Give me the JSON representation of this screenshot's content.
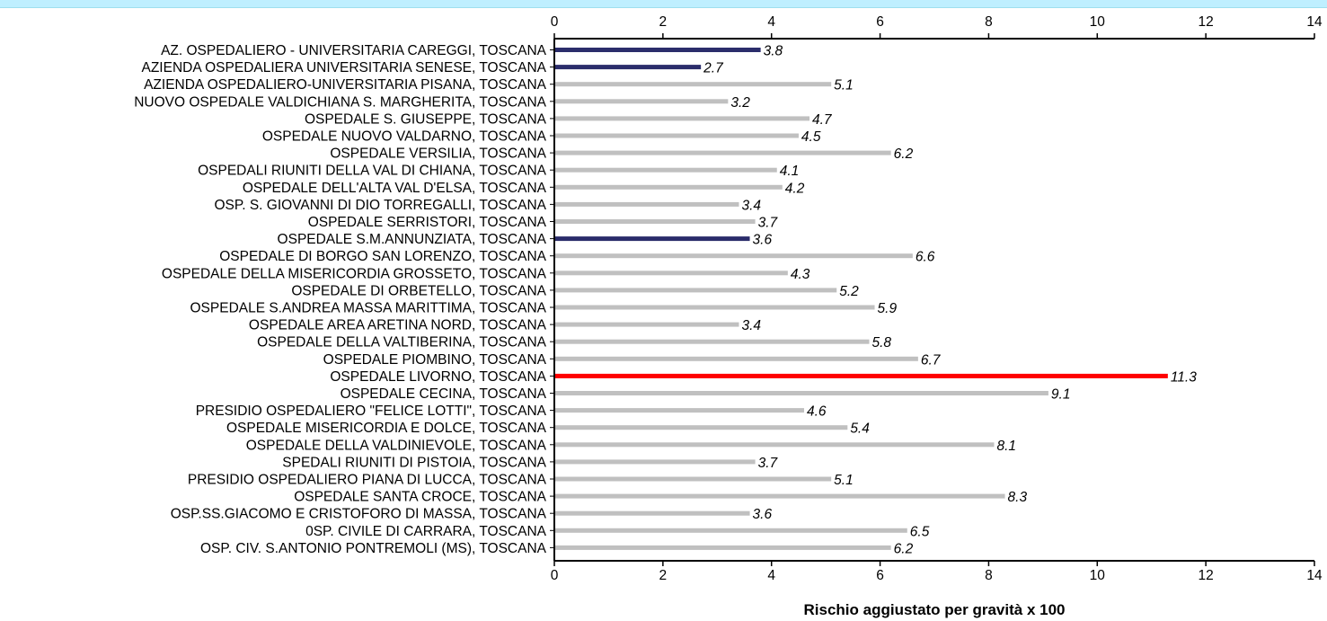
{
  "chart_data": {
    "type": "bar",
    "orientation": "horizontal",
    "title": "",
    "xlabel": "Rischio aggiustato per gravità x 100",
    "ylabel": "",
    "xlim": [
      0,
      14
    ],
    "xticks": [
      "0",
      "2",
      "4",
      "6",
      "8",
      "10",
      "12",
      "14"
    ],
    "grid": false,
    "colors": {
      "default": "#c0c0c0",
      "highlight_blue": "#2b2d6b",
      "highlight_red": "#ff0000"
    },
    "categories": [
      "AZ. OSPEDALIERO - UNIVERSITARIA CAREGGI, TOSCANA",
      "AZIENDA OSPEDALIERA UNIVERSITARIA SENESE, TOSCANA",
      "AZIENDA OSPEDALIERO-UNIVERSITARIA PISANA, TOSCANA",
      "NUOVO OSPEDALE VALDICHIANA S. MARGHERITA, TOSCANA",
      "OSPEDALE S. GIUSEPPE, TOSCANA",
      "OSPEDALE NUOVO VALDARNO, TOSCANA",
      "OSPEDALE VERSILIA, TOSCANA",
      "OSPEDALI RIUNITI DELLA VAL DI CHIANA, TOSCANA",
      "OSPEDALE DELL'ALTA VAL D'ELSA, TOSCANA",
      "OSP. S. GIOVANNI DI DIO TORREGALLI, TOSCANA",
      "OSPEDALE SERRISTORI, TOSCANA",
      "OSPEDALE S.M.ANNUNZIATA, TOSCANA",
      "OSPEDALE DI BORGO SAN LORENZO, TOSCANA",
      "OSPEDALE DELLA MISERICORDIA GROSSETO, TOSCANA",
      "OSPEDALE DI ORBETELLO, TOSCANA",
      "OSPEDALE  S.ANDREA   MASSA MARITTIMA, TOSCANA",
      "OSPEDALE AREA ARETINA NORD, TOSCANA",
      "OSPEDALE DELLA VALTIBERINA, TOSCANA",
      "OSPEDALE PIOMBINO, TOSCANA",
      "OSPEDALE LIVORNO, TOSCANA",
      "OSPEDALE CECINA, TOSCANA",
      "PRESIDIO OSPEDALIERO \"FELICE LOTTI\", TOSCANA",
      "OSPEDALE MISERICORDIA E DOLCE, TOSCANA",
      "OSPEDALE DELLA VALDINIEVOLE, TOSCANA",
      "SPEDALI RIUNITI DI PISTOIA, TOSCANA",
      "PRESIDIO OSPEDALIERO PIANA DI LUCCA, TOSCANA",
      "OSPEDALE SANTA CROCE, TOSCANA",
      "OSP.SS.GIACOMO E CRISTOFORO DI MASSA, TOSCANA",
      "0SP. CIVILE DI CARRARA, TOSCANA",
      "OSP. CIV. S.ANTONIO  PONTREMOLI (MS), TOSCANA"
    ],
    "values": [
      3.8,
      2.7,
      5.1,
      3.2,
      4.7,
      4.5,
      6.2,
      4.1,
      4.2,
      3.4,
      3.7,
      3.6,
      6.6,
      4.3,
      5.2,
      5.9,
      3.4,
      5.8,
      6.7,
      11.3,
      9.1,
      4.6,
      5.4,
      8.1,
      3.7,
      5.1,
      8.3,
      3.6,
      6.5,
      6.2
    ],
    "value_labels": [
      "3.8",
      "2.7",
      "5.1",
      "3.2",
      "4.7",
      "4.5",
      "6.2",
      "4.1",
      "4.2",
      "3.4",
      "3.7",
      "3.6",
      "6.6",
      "4.3",
      "5.2",
      "5.9",
      "3.4",
      "5.8",
      "6.7",
      "11.3",
      "9.1",
      "4.6",
      "5.4",
      "8.1",
      "3.7",
      "5.1",
      "8.3",
      "3.6",
      "6.5",
      "6.2"
    ],
    "bar_color": [
      "highlight_blue",
      "highlight_blue",
      "default",
      "default",
      "default",
      "default",
      "default",
      "default",
      "default",
      "default",
      "default",
      "highlight_blue",
      "default",
      "default",
      "default",
      "default",
      "default",
      "default",
      "default",
      "highlight_red",
      "default",
      "default",
      "default",
      "default",
      "default",
      "default",
      "default",
      "default",
      "default",
      "default"
    ]
  }
}
